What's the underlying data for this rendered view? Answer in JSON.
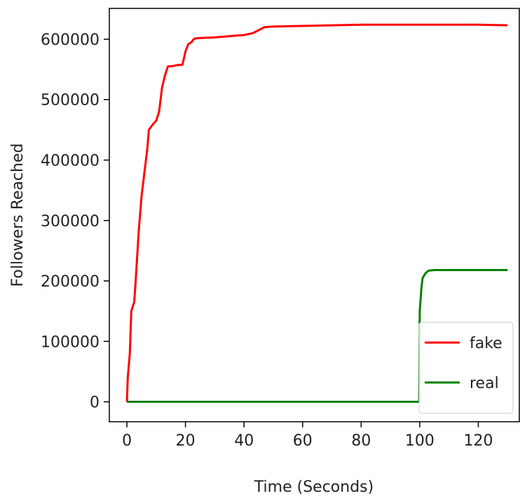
{
  "chart_data": {
    "type": "line",
    "title": "",
    "xlabel": "Time (Seconds)",
    "ylabel": "Followers Reached",
    "xlim": [
      -6,
      134
    ],
    "ylim": [
      -33000,
      651000
    ],
    "xticks": [
      0,
      20,
      40,
      60,
      80,
      100,
      120
    ],
    "yticks": [
      0,
      100000,
      200000,
      300000,
      400000,
      500000,
      600000
    ],
    "grid": false,
    "legend": "lower-right",
    "series": [
      {
        "name": "fake",
        "color": "#ff0000",
        "points": [
          [
            0,
            0
          ],
          [
            0.3,
            40000
          ],
          [
            1,
            80000
          ],
          [
            1.5,
            150000
          ],
          [
            2.5,
            165000
          ],
          [
            3,
            200000
          ],
          [
            4,
            280000
          ],
          [
            5,
            340000
          ],
          [
            6,
            380000
          ],
          [
            7,
            420000
          ],
          [
            7.5,
            450000
          ],
          [
            9,
            460000
          ],
          [
            10,
            465000
          ],
          [
            11,
            480000
          ],
          [
            12,
            520000
          ],
          [
            13,
            540000
          ],
          [
            14,
            555000
          ],
          [
            15,
            555000
          ],
          [
            17,
            557000
          ],
          [
            19,
            558000
          ],
          [
            20,
            580000
          ],
          [
            21,
            592000
          ],
          [
            22,
            595000
          ],
          [
            23,
            601000
          ],
          [
            25,
            602000
          ],
          [
            30,
            603000
          ],
          [
            35,
            605000
          ],
          [
            40,
            607000
          ],
          [
            43,
            610000
          ],
          [
            45,
            615000
          ],
          [
            47,
            620000
          ],
          [
            50,
            621000
          ],
          [
            60,
            622000
          ],
          [
            70,
            623000
          ],
          [
            80,
            624000
          ],
          [
            90,
            624000
          ],
          [
            100,
            624000
          ],
          [
            110,
            624000
          ],
          [
            120,
            624000
          ],
          [
            130,
            623000
          ]
        ]
      },
      {
        "name": "real",
        "color": "#008000",
        "points": [
          [
            0,
            0
          ],
          [
            50,
            0
          ],
          [
            99.8,
            0
          ],
          [
            100,
            150000
          ],
          [
            100.6,
            190000
          ],
          [
            101,
            205000
          ],
          [
            102,
            213000
          ],
          [
            103,
            217000
          ],
          [
            105,
            218000
          ],
          [
            110,
            218000
          ],
          [
            120,
            218000
          ],
          [
            130,
            218000
          ]
        ]
      }
    ]
  }
}
